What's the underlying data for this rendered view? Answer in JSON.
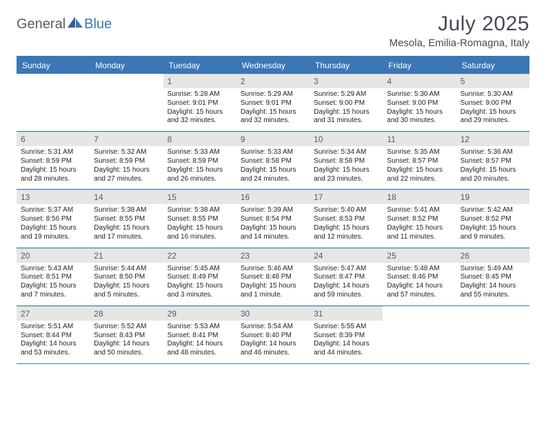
{
  "logo": {
    "general": "General",
    "blue": "Blue"
  },
  "title": "July 2025",
  "location": "Mesola, Emilia-Romagna, Italy",
  "colors": {
    "brand_blue": "#3b77b7",
    "header_text": "#444a52",
    "daynum_bg": "#e6e6e6",
    "body_text": "#222222",
    "background": "#ffffff"
  },
  "day_names": [
    "Sunday",
    "Monday",
    "Tuesday",
    "Wednesday",
    "Thursday",
    "Friday",
    "Saturday"
  ],
  "weeks": [
    [
      {
        "num": "",
        "sunrise": "",
        "sunset": "",
        "daylight1": "",
        "daylight2": ""
      },
      {
        "num": "",
        "sunrise": "",
        "sunset": "",
        "daylight1": "",
        "daylight2": ""
      },
      {
        "num": "1",
        "sunrise": "Sunrise: 5:28 AM",
        "sunset": "Sunset: 9:01 PM",
        "daylight1": "Daylight: 15 hours",
        "daylight2": "and 32 minutes."
      },
      {
        "num": "2",
        "sunrise": "Sunrise: 5:29 AM",
        "sunset": "Sunset: 9:01 PM",
        "daylight1": "Daylight: 15 hours",
        "daylight2": "and 32 minutes."
      },
      {
        "num": "3",
        "sunrise": "Sunrise: 5:29 AM",
        "sunset": "Sunset: 9:00 PM",
        "daylight1": "Daylight: 15 hours",
        "daylight2": "and 31 minutes."
      },
      {
        "num": "4",
        "sunrise": "Sunrise: 5:30 AM",
        "sunset": "Sunset: 9:00 PM",
        "daylight1": "Daylight: 15 hours",
        "daylight2": "and 30 minutes."
      },
      {
        "num": "5",
        "sunrise": "Sunrise: 5:30 AM",
        "sunset": "Sunset: 9:00 PM",
        "daylight1": "Daylight: 15 hours",
        "daylight2": "and 29 minutes."
      }
    ],
    [
      {
        "num": "6",
        "sunrise": "Sunrise: 5:31 AM",
        "sunset": "Sunset: 8:59 PM",
        "daylight1": "Daylight: 15 hours",
        "daylight2": "and 28 minutes."
      },
      {
        "num": "7",
        "sunrise": "Sunrise: 5:32 AM",
        "sunset": "Sunset: 8:59 PM",
        "daylight1": "Daylight: 15 hours",
        "daylight2": "and 27 minutes."
      },
      {
        "num": "8",
        "sunrise": "Sunrise: 5:33 AM",
        "sunset": "Sunset: 8:59 PM",
        "daylight1": "Daylight: 15 hours",
        "daylight2": "and 26 minutes."
      },
      {
        "num": "9",
        "sunrise": "Sunrise: 5:33 AM",
        "sunset": "Sunset: 8:58 PM",
        "daylight1": "Daylight: 15 hours",
        "daylight2": "and 24 minutes."
      },
      {
        "num": "10",
        "sunrise": "Sunrise: 5:34 AM",
        "sunset": "Sunset: 8:58 PM",
        "daylight1": "Daylight: 15 hours",
        "daylight2": "and 23 minutes."
      },
      {
        "num": "11",
        "sunrise": "Sunrise: 5:35 AM",
        "sunset": "Sunset: 8:57 PM",
        "daylight1": "Daylight: 15 hours",
        "daylight2": "and 22 minutes."
      },
      {
        "num": "12",
        "sunrise": "Sunrise: 5:36 AM",
        "sunset": "Sunset: 8:57 PM",
        "daylight1": "Daylight: 15 hours",
        "daylight2": "and 20 minutes."
      }
    ],
    [
      {
        "num": "13",
        "sunrise": "Sunrise: 5:37 AM",
        "sunset": "Sunset: 8:56 PM",
        "daylight1": "Daylight: 15 hours",
        "daylight2": "and 19 minutes."
      },
      {
        "num": "14",
        "sunrise": "Sunrise: 5:38 AM",
        "sunset": "Sunset: 8:55 PM",
        "daylight1": "Daylight: 15 hours",
        "daylight2": "and 17 minutes."
      },
      {
        "num": "15",
        "sunrise": "Sunrise: 5:38 AM",
        "sunset": "Sunset: 8:55 PM",
        "daylight1": "Daylight: 15 hours",
        "daylight2": "and 16 minutes."
      },
      {
        "num": "16",
        "sunrise": "Sunrise: 5:39 AM",
        "sunset": "Sunset: 8:54 PM",
        "daylight1": "Daylight: 15 hours",
        "daylight2": "and 14 minutes."
      },
      {
        "num": "17",
        "sunrise": "Sunrise: 5:40 AM",
        "sunset": "Sunset: 8:53 PM",
        "daylight1": "Daylight: 15 hours",
        "daylight2": "and 12 minutes."
      },
      {
        "num": "18",
        "sunrise": "Sunrise: 5:41 AM",
        "sunset": "Sunset: 8:52 PM",
        "daylight1": "Daylight: 15 hours",
        "daylight2": "and 11 minutes."
      },
      {
        "num": "19",
        "sunrise": "Sunrise: 5:42 AM",
        "sunset": "Sunset: 8:52 PM",
        "daylight1": "Daylight: 15 hours",
        "daylight2": "and 9 minutes."
      }
    ],
    [
      {
        "num": "20",
        "sunrise": "Sunrise: 5:43 AM",
        "sunset": "Sunset: 8:51 PM",
        "daylight1": "Daylight: 15 hours",
        "daylight2": "and 7 minutes."
      },
      {
        "num": "21",
        "sunrise": "Sunrise: 5:44 AM",
        "sunset": "Sunset: 8:50 PM",
        "daylight1": "Daylight: 15 hours",
        "daylight2": "and 5 minutes."
      },
      {
        "num": "22",
        "sunrise": "Sunrise: 5:45 AM",
        "sunset": "Sunset: 8:49 PM",
        "daylight1": "Daylight: 15 hours",
        "daylight2": "and 3 minutes."
      },
      {
        "num": "23",
        "sunrise": "Sunrise: 5:46 AM",
        "sunset": "Sunset: 8:48 PM",
        "daylight1": "Daylight: 15 hours",
        "daylight2": "and 1 minute."
      },
      {
        "num": "24",
        "sunrise": "Sunrise: 5:47 AM",
        "sunset": "Sunset: 8:47 PM",
        "daylight1": "Daylight: 14 hours",
        "daylight2": "and 59 minutes."
      },
      {
        "num": "25",
        "sunrise": "Sunrise: 5:48 AM",
        "sunset": "Sunset: 8:46 PM",
        "daylight1": "Daylight: 14 hours",
        "daylight2": "and 57 minutes."
      },
      {
        "num": "26",
        "sunrise": "Sunrise: 5:49 AM",
        "sunset": "Sunset: 8:45 PM",
        "daylight1": "Daylight: 14 hours",
        "daylight2": "and 55 minutes."
      }
    ],
    [
      {
        "num": "27",
        "sunrise": "Sunrise: 5:51 AM",
        "sunset": "Sunset: 8:44 PM",
        "daylight1": "Daylight: 14 hours",
        "daylight2": "and 53 minutes."
      },
      {
        "num": "28",
        "sunrise": "Sunrise: 5:52 AM",
        "sunset": "Sunset: 8:43 PM",
        "daylight1": "Daylight: 14 hours",
        "daylight2": "and 50 minutes."
      },
      {
        "num": "29",
        "sunrise": "Sunrise: 5:53 AM",
        "sunset": "Sunset: 8:41 PM",
        "daylight1": "Daylight: 14 hours",
        "daylight2": "and 48 minutes."
      },
      {
        "num": "30",
        "sunrise": "Sunrise: 5:54 AM",
        "sunset": "Sunset: 8:40 PM",
        "daylight1": "Daylight: 14 hours",
        "daylight2": "and 46 minutes."
      },
      {
        "num": "31",
        "sunrise": "Sunrise: 5:55 AM",
        "sunset": "Sunset: 8:39 PM",
        "daylight1": "Daylight: 14 hours",
        "daylight2": "and 44 minutes."
      },
      {
        "num": "",
        "sunrise": "",
        "sunset": "",
        "daylight1": "",
        "daylight2": ""
      },
      {
        "num": "",
        "sunrise": "",
        "sunset": "",
        "daylight1": "",
        "daylight2": ""
      }
    ]
  ]
}
